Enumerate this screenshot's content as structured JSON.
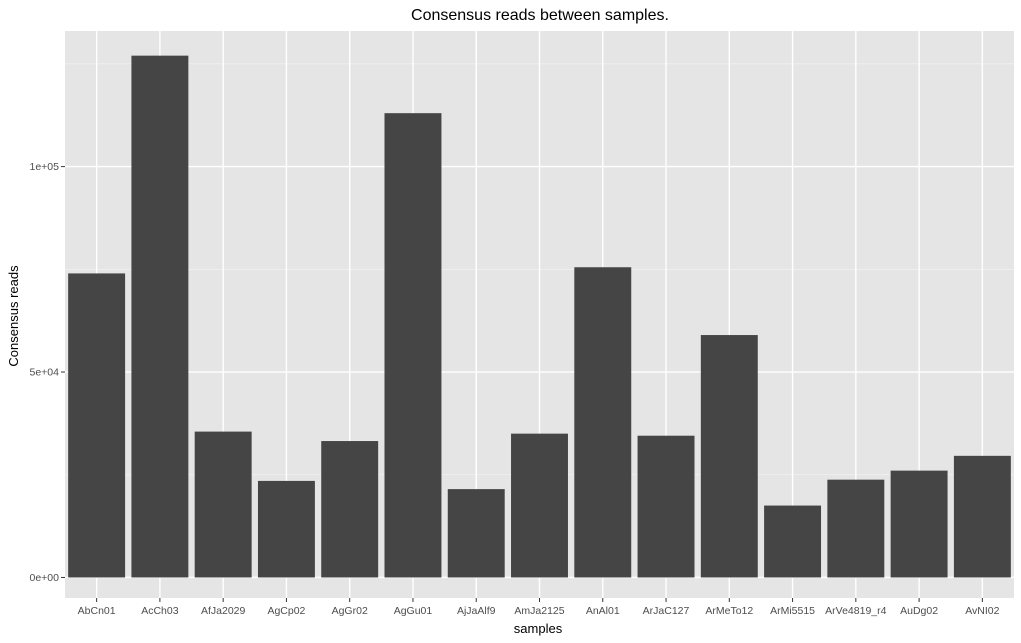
{
  "chart_data": {
    "type": "bar",
    "title": "Consensus reads between samples.",
    "xlabel": "samples",
    "ylabel": "Consensus reads",
    "categories": [
      "AbCn01",
      "AcCh03",
      "AfJa2029",
      "AgCp02",
      "AgGr02",
      "AgGu01",
      "AjJaAlf9",
      "AmJa2125",
      "AnAl01",
      "ArJaC127",
      "ArMeTo12",
      "ArMi5515",
      "ArVe4819_r4",
      "AuDg02",
      "AvNI02"
    ],
    "values": [
      74000,
      127000,
      35500,
      23500,
      33200,
      113000,
      21500,
      35000,
      75500,
      34500,
      59000,
      17500,
      23800,
      26000,
      29600
    ],
    "ylim": [
      -5000,
      133000
    ],
    "yticks": [
      {
        "value": 0,
        "label": "0e+00"
      },
      {
        "value": 50000,
        "label": "5e+04"
      },
      {
        "value": 100000,
        "label": "1e+05"
      }
    ],
    "grid": true,
    "colors": {
      "panel": "#e5e5e5",
      "grid_major": "#ffffff",
      "grid_minor": "#f2f2f2",
      "bar": "#454545",
      "tick": "#333333"
    }
  }
}
